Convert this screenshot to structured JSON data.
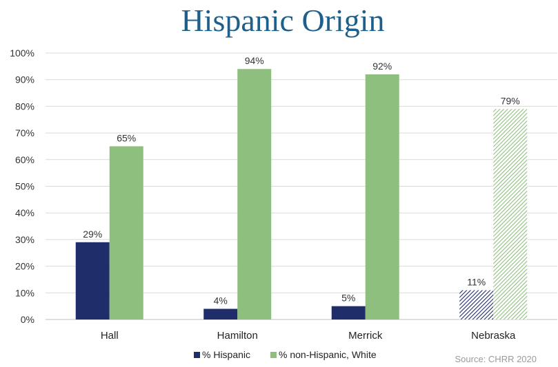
{
  "chart_data": {
    "type": "bar",
    "title": "Hispanic Origin",
    "categories": [
      "Hall",
      "Hamilton",
      "Merrick",
      "Nebraska"
    ],
    "series": [
      {
        "name": "% Hispanic",
        "color": "#1f2d6b",
        "values": [
          29,
          4,
          5,
          11
        ],
        "labels": [
          "29%",
          "4%",
          "5%",
          "11%"
        ]
      },
      {
        "name": "% non-Hispanic, White",
        "color": "#8fbf7f",
        "values": [
          65,
          94,
          92,
          79
        ],
        "labels": [
          "65%",
          "94%",
          "92%",
          "79%"
        ]
      }
    ],
    "hatched_categories": [
      "Nebraska"
    ],
    "ylim": [
      0,
      100
    ],
    "yticks": [
      "0%",
      "10%",
      "20%",
      "30%",
      "40%",
      "50%",
      "60%",
      "70%",
      "80%",
      "90%",
      "100%"
    ],
    "grid": true,
    "legend_position": "bottom",
    "source": "Source: CHRR 2020"
  }
}
